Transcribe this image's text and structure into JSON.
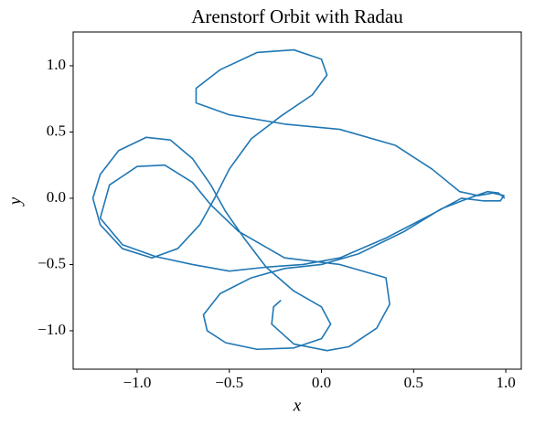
{
  "chart_data": {
    "type": "line",
    "title": "Arenstorf Orbit with Radau",
    "x_label": "x",
    "y_label": "y",
    "color": "#1f77b4",
    "x": [
      0.994,
      0.96,
      0.9,
      0.84,
      0.78,
      0.65,
      0.45,
      0.2,
      0,
      -0.2,
      -0.38,
      -0.55,
      -0.64,
      -0.62,
      -0.52,
      -0.35,
      -0.15,
      0,
      0.05,
      0,
      -0.15,
      -0.3,
      -0.42,
      -0.52,
      -0.6,
      -0.7,
      -0.82,
      -0.95,
      -1.1,
      -1.2,
      -1.24,
      -1.2,
      -1.08,
      -0.92,
      -0.78,
      -0.66,
      -0.58,
      -0.5,
      -0.38,
      -0.22,
      -0.05,
      0.03,
      0,
      -0.15,
      -0.35,
      -0.55,
      -0.68,
      -0.68,
      -0.5,
      -0.2,
      0.1,
      0.4,
      0.6,
      0.75,
      0.85,
      0.93,
      0.99,
      0.97,
      0.88,
      0.76,
      0.6,
      0.35,
      0.1,
      -0.1,
      -0.3,
      -0.5,
      -0.7,
      -0.9,
      -1.08,
      -1.2,
      -1.15,
      -1.0,
      -0.85,
      -0.7,
      -0.6,
      -0.45,
      -0.2,
      0.1,
      0.35,
      0.37,
      0.3,
      0.15,
      0.03,
      -0.15,
      -0.27,
      -0.26,
      -0.22
    ],
    "values": [
      0,
      0.04,
      0.05,
      0.02,
      -0.01,
      -0.08,
      -0.25,
      -0.42,
      -0.5,
      -0.53,
      -0.6,
      -0.72,
      -0.88,
      -1.0,
      -1.09,
      -1.14,
      -1.13,
      -1.06,
      -0.95,
      -0.82,
      -0.7,
      -0.52,
      -0.3,
      -0.1,
      0.1,
      0.3,
      0.44,
      0.46,
      0.36,
      0.18,
      0,
      -0.2,
      -0.38,
      -0.45,
      -0.38,
      -0.2,
      0,
      0.22,
      0.45,
      0.62,
      0.78,
      0.93,
      1.05,
      1.12,
      1.1,
      0.97,
      0.83,
      0.72,
      0.63,
      0.56,
      0.52,
      0.4,
      0.22,
      0.05,
      0.02,
      0.04,
      0.02,
      -0.02,
      -0.02,
      0,
      -0.12,
      -0.3,
      -0.45,
      -0.5,
      -0.52,
      -0.55,
      -0.5,
      -0.44,
      -0.35,
      -0.15,
      0.1,
      0.24,
      0.25,
      0.12,
      -0.05,
      -0.25,
      -0.45,
      -0.5,
      -0.6,
      -0.8,
      -0.98,
      -1.12,
      -1.15,
      -1.1,
      -0.95,
      -0.82,
      -0.77
    ],
    "xlim": [
      -1.347,
      1.084
    ],
    "ylim": [
      -1.29,
      1.255
    ],
    "xticks": [
      {
        "value": -1,
        "label": "−1.0"
      },
      {
        "value": -0.5,
        "label": "−0.5"
      },
      {
        "value": 0,
        "label": "0.0"
      },
      0.5,
      {
        "value": 1,
        "label": "1.0"
      }
    ],
    "yticks": [
      {
        "value": -1,
        "label": "−1.0"
      },
      {
        "value": -0.5,
        "label": "−0.5"
      },
      {
        "value": 0,
        "label": "0.0"
      },
      0.5,
      {
        "value": 1,
        "label": "1.0"
      }
    ]
  }
}
